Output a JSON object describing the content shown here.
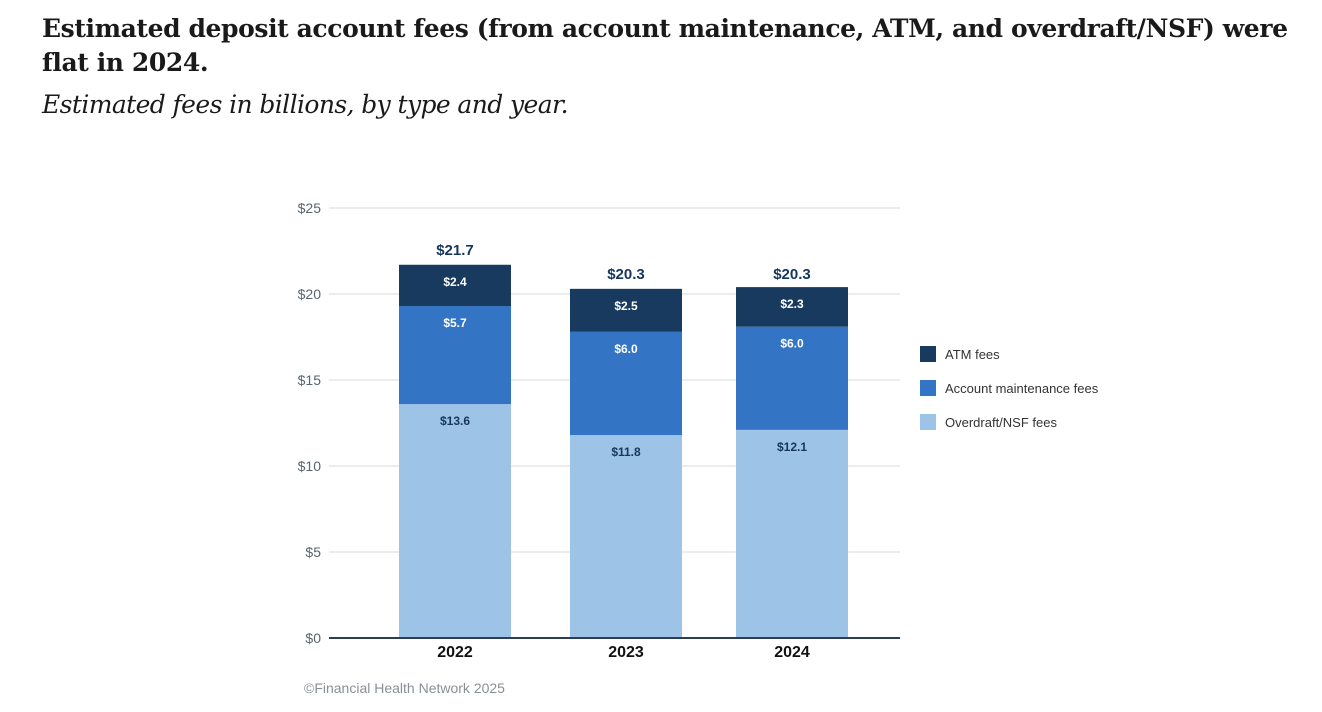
{
  "header": {
    "title": "Estimated deposit account fees (from account maintenance, ATM, and overdraft/NSF) were flat in 2024.",
    "subtitle": "Estimated fees in billions, by type and year."
  },
  "credit": "©Financial Health Network 2025",
  "chart_data": {
    "type": "bar",
    "stacked": true,
    "title": "Estimated deposit account fees (from account maintenance, ATM, and overdraft/NSF) were flat in 2024.",
    "subtitle": "Estimated fees in billions, by type and year.",
    "xlabel": "",
    "ylabel": "",
    "categories": [
      "2022",
      "2023",
      "2024"
    ],
    "ylim": [
      0,
      25
    ],
    "yticks": [
      0,
      5,
      10,
      15,
      20,
      25
    ],
    "ytick_labels": [
      "$0",
      "$5",
      "$10",
      "$15",
      "$20",
      "$25"
    ],
    "grid": true,
    "legend_position": "right",
    "series": [
      {
        "name": "Overdraft/NSF fees",
        "color": "#9dc3e6",
        "label_color": "#17365d",
        "values": [
          13.6,
          11.8,
          12.1
        ],
        "labels": [
          "$13.6",
          "$11.8",
          "$12.1"
        ]
      },
      {
        "name": "Account maintenance fees",
        "color": "#3474c4",
        "label_color": "#ffffff",
        "values": [
          5.7,
          6.0,
          6.0
        ],
        "labels": [
          "$5.7",
          "$6.0",
          "$6.0"
        ]
      },
      {
        "name": "ATM fees",
        "color": "#173a5e",
        "label_color": "#ffffff",
        "values": [
          2.4,
          2.5,
          2.3
        ],
        "labels": [
          "$2.4",
          "$2.5",
          "$2.3"
        ]
      }
    ],
    "totals": [
      21.7,
      20.3,
      20.3
    ],
    "total_labels": [
      "$21.7",
      "$20.3",
      "$20.3"
    ],
    "legend_order": [
      "ATM fees",
      "Account maintenance fees",
      "Overdraft/NSF fees"
    ]
  }
}
